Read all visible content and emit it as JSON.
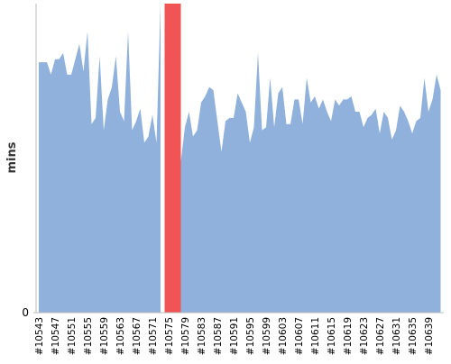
{
  "chart_data": {
    "type": "area",
    "y_label": "mins",
    "categories": [
      "#10543",
      null,
      null,
      null,
      "#10547",
      null,
      null,
      null,
      "#10551",
      null,
      null,
      null,
      "#10555",
      null,
      null,
      null,
      "#10559",
      null,
      null,
      null,
      "#10563",
      null,
      null,
      null,
      "#10567",
      null,
      null,
      null,
      "#10571",
      null,
      null,
      null,
      "#10575",
      null,
      null,
      null,
      "#10579",
      null,
      null,
      null,
      "#10583",
      null,
      null,
      null,
      "#10587",
      null,
      null,
      null,
      "#10591",
      null,
      null,
      null,
      "#10595",
      null,
      null,
      null,
      "#10599",
      null,
      null,
      null,
      "#10603",
      null,
      null,
      null,
      "#10607",
      null,
      null,
      null,
      "#10611",
      null,
      null,
      null,
      "#10615",
      null,
      null,
      null,
      "#10619",
      null,
      null,
      null,
      "#10623",
      null,
      null,
      null,
      "#10627",
      null,
      null,
      null,
      "#10631",
      null,
      null,
      null,
      "#10635",
      null,
      null,
      null,
      "#10639",
      null,
      null,
      null
    ],
    "series": [
      {
        "color": "#8fb1db",
        "values": [
          81,
          81,
          81,
          77,
          82,
          82,
          84,
          77,
          77,
          82,
          87,
          78,
          91,
          61,
          63,
          83,
          59,
          69,
          73,
          83,
          65,
          62,
          91,
          59,
          62,
          66,
          55,
          57,
          64,
          55,
          100,
          null,
          null,
          null,
          null,
          49,
          60,
          65,
          57,
          59,
          68,
          70,
          73,
          72,
          62,
          52,
          62,
          63,
          63,
          71,
          68,
          65,
          55,
          60,
          84,
          59,
          60,
          76,
          60,
          71,
          73,
          61,
          61,
          69,
          69,
          61,
          76,
          68,
          70,
          66,
          69,
          65,
          62,
          69,
          67,
          69,
          69,
          70,
          65,
          65,
          60,
          63,
          64,
          66,
          58,
          65,
          63,
          56,
          59,
          67,
          65,
          62,
          58,
          62,
          63,
          76,
          65,
          69,
          77,
          72
        ]
      },
      {
        "color": "#f05454",
        "values": [
          null,
          null,
          null,
          null,
          null,
          null,
          null,
          null,
          null,
          null,
          null,
          null,
          null,
          null,
          null,
          null,
          null,
          null,
          null,
          null,
          null,
          null,
          null,
          null,
          null,
          null,
          null,
          null,
          null,
          null,
          null,
          110,
          110,
          110,
          110,
          110,
          null,
          null,
          null,
          null,
          null,
          null,
          null,
          null,
          null,
          null,
          null,
          null,
          null,
          null,
          null,
          null,
          null,
          null,
          null,
          null,
          null,
          null,
          null,
          null,
          null,
          null,
          null,
          null,
          null,
          null,
          null,
          null,
          null,
          null,
          null,
          null,
          null,
          null,
          null,
          null,
          null,
          null,
          null,
          null,
          null,
          null,
          null,
          null,
          null,
          null,
          null,
          null,
          null,
          null,
          null,
          null,
          null,
          null,
          null,
          null,
          null,
          null,
          null,
          null
        ]
      }
    ],
    "ylim": [
      0,
      100
    ],
    "yticks": [
      0
    ]
  }
}
